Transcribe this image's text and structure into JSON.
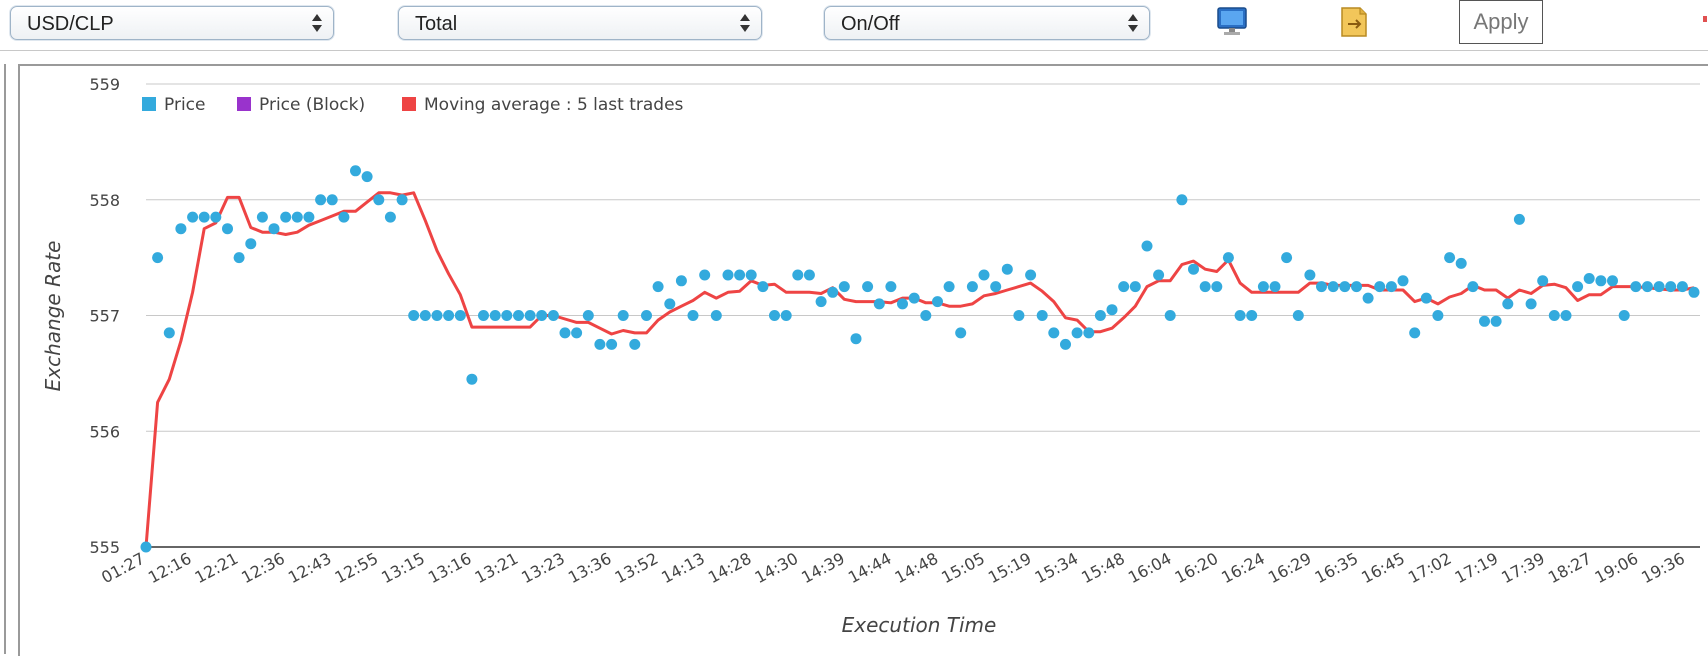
{
  "toolbar": {
    "pair_select": "USD/CLP",
    "mode_select": "Total",
    "toggle_select": "On/Off",
    "monitor_icon": "monitor-icon",
    "export_icon": "export-icon",
    "apply_label": "Apply"
  },
  "colors": {
    "price": "#33aadd",
    "price_block": "#9933cc",
    "moving_average": "#ee4444",
    "grid": "#c8c8c8"
  },
  "chart_data": {
    "type": "scatter",
    "xlabel": "Execution Time",
    "ylabel": "Exchange Rate",
    "ylim": [
      555,
      559
    ],
    "yticks": [
      "555",
      "556",
      "557",
      "558",
      "559"
    ],
    "xtick_labels": [
      "01:27",
      "12:16",
      "12:21",
      "12:36",
      "12:43",
      "12:55",
      "13:15",
      "13:16",
      "13:21",
      "13:23",
      "13:36",
      "13:52",
      "14:13",
      "14:28",
      "14:30",
      "14:39",
      "14:44",
      "14:48",
      "15:05",
      "15:19",
      "15:34",
      "15:48",
      "16:04",
      "16:20",
      "16:24",
      "16:29",
      "16:35",
      "16:45",
      "17:02",
      "17:19",
      "17:39",
      "18:27",
      "19:06",
      "19:36"
    ],
    "legend": {
      "placement": "top-left",
      "entries": [
        {
          "name": "Price",
          "color": "#33aadd"
        },
        {
          "name": "Price (Block)",
          "color": "#9933cc"
        },
        {
          "name": "Moving average : 5 last trades",
          "color": "#ee4444"
        }
      ]
    },
    "series": [
      {
        "name": "Price",
        "values": [
          555.0,
          557.5,
          556.85,
          557.75,
          557.85,
          557.85,
          557.85,
          557.75,
          557.5,
          557.62,
          557.85,
          557.75,
          557.85,
          557.85,
          557.85,
          558.0,
          558.0,
          557.85,
          558.25,
          558.2,
          558.0,
          557.85,
          558.0,
          557.0,
          557.0,
          557.0,
          557.0,
          557.0,
          556.45,
          557.0,
          557.0,
          557.0,
          557.0,
          557.0,
          557.0,
          557.0,
          556.85,
          556.85,
          557.0,
          556.75,
          556.75,
          557.0,
          556.75,
          557.0,
          557.25,
          557.1,
          557.3,
          557.0,
          557.35,
          557.0,
          557.35,
          557.35,
          557.35,
          557.25,
          557.0,
          557.0,
          557.35,
          557.35,
          557.12,
          557.2,
          557.25,
          556.8,
          557.25,
          557.1,
          557.25,
          557.1,
          557.15,
          557.0,
          557.12,
          557.25,
          556.85,
          557.25,
          557.35,
          557.25,
          557.4,
          557.0,
          557.35,
          557.0,
          556.85,
          556.75,
          556.85,
          556.85,
          557.0,
          557.05,
          557.25,
          557.25,
          557.6,
          557.35,
          557.0,
          558.0,
          557.4,
          557.25,
          557.25,
          557.5,
          557.0,
          557.0,
          557.25,
          557.25,
          557.5,
          557.0,
          557.35,
          557.25,
          557.25,
          557.25,
          557.25,
          557.15,
          557.25,
          557.25,
          557.3,
          556.85,
          557.15,
          557.0,
          557.5,
          557.45,
          557.25,
          556.95,
          556.95,
          557.1,
          557.83,
          557.1,
          557.3,
          557.0,
          557.0,
          557.25,
          557.32,
          557.3,
          557.3,
          557.0,
          557.25,
          557.25,
          557.25,
          557.25,
          557.25,
          557.2
        ]
      },
      {
        "name": "Moving average : 5 last trades",
        "values": [
          555.0,
          556.25,
          556.45,
          556.78,
          557.2,
          557.75,
          557.8,
          558.02,
          558.02,
          557.76,
          557.72,
          557.72,
          557.7,
          557.72,
          557.78,
          557.82,
          557.86,
          557.9,
          557.9,
          557.98,
          558.06,
          558.06,
          558.04,
          558.06,
          557.82,
          557.56,
          557.36,
          557.18,
          556.9,
          556.9,
          556.9,
          556.9,
          556.9,
          556.9,
          557.0,
          557.0,
          556.97,
          556.94,
          556.94,
          556.89,
          556.84,
          556.87,
          556.85,
          556.85,
          556.96,
          557.03,
          557.08,
          557.13,
          557.2,
          557.15,
          557.2,
          557.21,
          557.3,
          557.26,
          557.27,
          557.2,
          557.2,
          557.2,
          557.19,
          557.24,
          557.14,
          557.12,
          557.12,
          557.12,
          557.11,
          557.15,
          557.15,
          557.11,
          557.11,
          557.08,
          557.08,
          557.1,
          557.17,
          557.19,
          557.22,
          557.25,
          557.28,
          557.21,
          557.12,
          556.98,
          556.96,
          556.86,
          556.86,
          556.89,
          556.98,
          557.08,
          557.25,
          557.3,
          557.3,
          557.44,
          557.47,
          557.4,
          557.38,
          557.48,
          557.28,
          557.2,
          557.2,
          557.2,
          557.2,
          557.2,
          557.28,
          557.28,
          557.26,
          557.26,
          557.26,
          557.26,
          557.22,
          557.22,
          557.22,
          557.12,
          557.15,
          557.1,
          557.16,
          557.19,
          557.26,
          557.22,
          557.22,
          557.15,
          557.22,
          557.19,
          557.26,
          557.27,
          557.24,
          557.13,
          557.18,
          557.18,
          557.25,
          557.25,
          557.25,
          557.24,
          557.23,
          557.22,
          557.22,
          557.24
        ]
      }
    ]
  }
}
